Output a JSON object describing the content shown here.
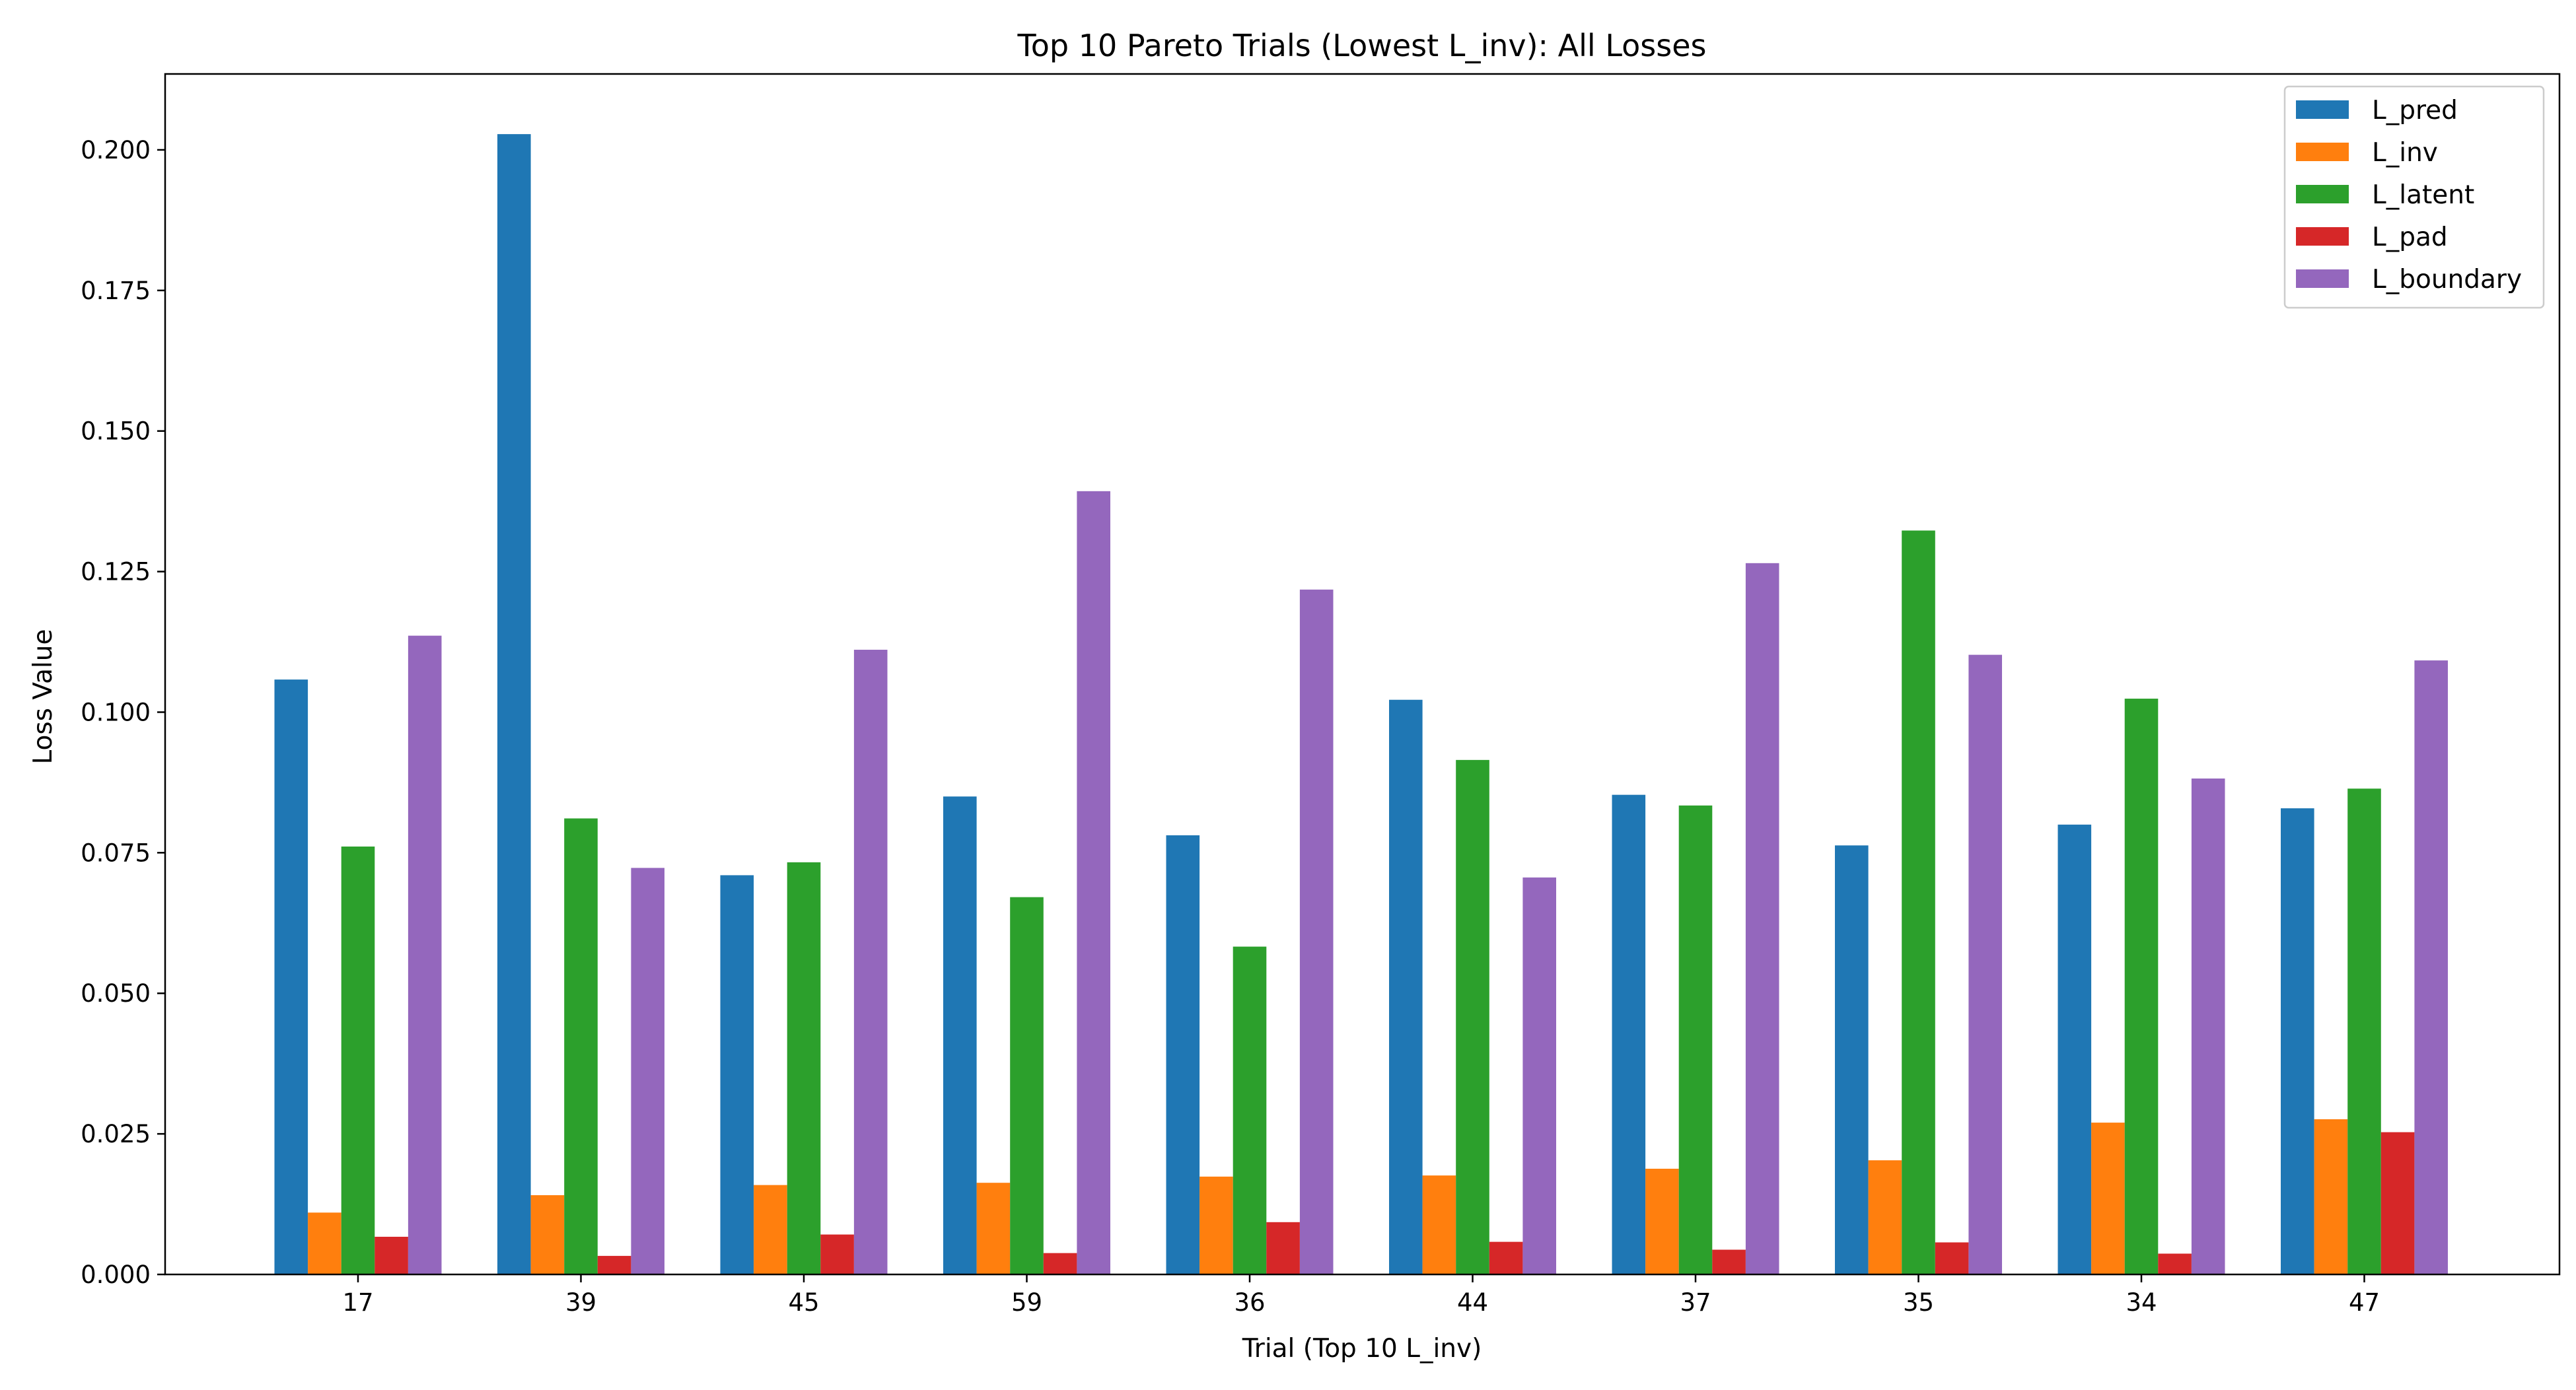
{
  "chart_data": {
    "type": "bar",
    "title": "Top 10 Pareto Trials (Lowest L_inv): All Losses",
    "xlabel": "Trial (Top 10 L_inv)",
    "ylabel": "Loss Value",
    "categories": [
      "17",
      "39",
      "45",
      "59",
      "36",
      "44",
      "37",
      "35",
      "34",
      "47"
    ],
    "ylim": [
      0,
      0.2135
    ],
    "yticks": [
      {
        "value": 0.0,
        "label": "0.000"
      },
      {
        "value": 0.025,
        "label": "0.025"
      },
      {
        "value": 0.05,
        "label": "0.050"
      },
      {
        "value": 0.075,
        "label": "0.075"
      },
      {
        "value": 0.1,
        "label": "0.100"
      },
      {
        "value": 0.125,
        "label": "0.125"
      },
      {
        "value": 0.15,
        "label": "0.150"
      },
      {
        "value": 0.175,
        "label": "0.175"
      },
      {
        "value": 0.2,
        "label": "0.200"
      }
    ],
    "grid": false,
    "legend_position": "top-right",
    "series": [
      {
        "name": "L_pred",
        "color": "#1f77b4",
        "values": [
          0.1058,
          0.2028,
          0.071,
          0.085,
          0.0781,
          0.1022,
          0.0853,
          0.0763,
          0.08,
          0.0829
        ]
      },
      {
        "name": "L_inv",
        "color": "#ff7f0e",
        "values": [
          0.011,
          0.0141,
          0.0159,
          0.0163,
          0.0174,
          0.0176,
          0.0188,
          0.0203,
          0.027,
          0.0276
        ]
      },
      {
        "name": "L_latent",
        "color": "#2ca02c",
        "values": [
          0.0761,
          0.0811,
          0.0733,
          0.0671,
          0.0583,
          0.0915,
          0.0834,
          0.1323,
          0.1024,
          0.0864
        ]
      },
      {
        "name": "L_pad",
        "color": "#d62728",
        "values": [
          0.0067,
          0.0033,
          0.0071,
          0.0038,
          0.0093,
          0.0058,
          0.0044,
          0.0057,
          0.0037,
          0.0253
        ]
      },
      {
        "name": "L_boundary",
        "color": "#9467bd",
        "values": [
          0.1136,
          0.0723,
          0.1111,
          0.1393,
          0.1218,
          0.0706,
          0.1265,
          0.1102,
          0.0882,
          0.1092
        ]
      }
    ]
  }
}
